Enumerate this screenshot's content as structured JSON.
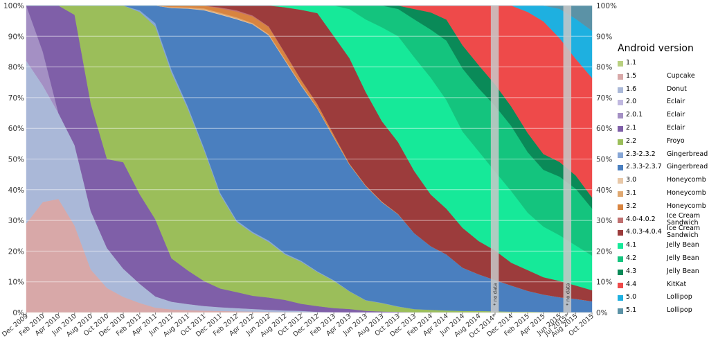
{
  "chart_data": {
    "type": "area",
    "stacked": true,
    "normalized": true,
    "title": "",
    "xlabel": "",
    "ylabel": "",
    "ylim": [
      0,
      100
    ],
    "grid": true,
    "legend_title": "Android version",
    "legend_placement": "right",
    "x_range": [
      "2009-12-01",
      "2015-10-01"
    ],
    "x_ticks": [
      {
        "date": "2009-12-01",
        "label": "Dec 2009"
      },
      {
        "date": "2010-02-01",
        "label": "Feb 2010"
      },
      {
        "date": "2010-04-01",
        "label": "Apr 2010"
      },
      {
        "date": "2010-06-01",
        "label": "Jun 2010"
      },
      {
        "date": "2010-08-01",
        "label": "Aug 2010"
      },
      {
        "date": "2010-10-01",
        "label": "Oct 2010"
      },
      {
        "date": "2010-12-01",
        "label": "Dec 2010"
      },
      {
        "date": "2011-02-01",
        "label": "Feb 2011"
      },
      {
        "date": "2011-04-01",
        "label": "Apr 2011"
      },
      {
        "date": "2011-06-01",
        "label": "Jun 2011"
      },
      {
        "date": "2011-08-01",
        "label": "Aug 2011"
      },
      {
        "date": "2011-10-01",
        "label": "Oct 2011"
      },
      {
        "date": "2011-12-01",
        "label": "Dec 2011"
      },
      {
        "date": "2012-02-01",
        "label": "Feb 2012"
      },
      {
        "date": "2012-04-01",
        "label": "Apr 2012"
      },
      {
        "date": "2012-06-01",
        "label": "Jun 2012"
      },
      {
        "date": "2012-08-01",
        "label": "Aug 2012"
      },
      {
        "date": "2012-10-01",
        "label": "Oct 2012"
      },
      {
        "date": "2012-12-01",
        "label": "Dec 2012"
      },
      {
        "date": "2013-02-01",
        "label": "Feb 2013"
      },
      {
        "date": "2013-04-01",
        "label": "Apr 2013"
      },
      {
        "date": "2013-06-01",
        "label": "Jun 2013"
      },
      {
        "date": "2013-08-01",
        "label": "Aug 2013"
      },
      {
        "date": "2013-10-01",
        "label": "Oct 2013"
      },
      {
        "date": "2013-12-01",
        "label": "Dec 2013"
      },
      {
        "date": "2014-02-01",
        "label": "Feb 2014"
      },
      {
        "date": "2014-04-01",
        "label": "Apr 2014"
      },
      {
        "date": "2014-06-01",
        "label": "Jun 2014"
      },
      {
        "date": "2014-08-01",
        "label": "Aug 2014"
      },
      {
        "date": "2014-10-01",
        "label": "Oct 2014*"
      },
      {
        "date": "2014-12-01",
        "label": "Dec 2014"
      },
      {
        "date": "2015-02-01",
        "label": "Feb 2015"
      },
      {
        "date": "2015-04-01",
        "label": "Apr 2015"
      },
      {
        "date": "2015-06-01",
        "label": "Jun 2015"
      },
      {
        "date": "2015-07-01",
        "label": "Jul 2015*"
      },
      {
        "date": "2015-08-01",
        "label": "Aug 2015"
      },
      {
        "date": "2015-10-01",
        "label": "Oct 2015"
      }
    ],
    "y_ticks": [
      {
        "value": 0,
        "label": "0%"
      },
      {
        "value": 10,
        "label": "10%"
      },
      {
        "value": 20,
        "label": "20%"
      },
      {
        "value": 30,
        "label": "30%"
      },
      {
        "value": 40,
        "label": "40%"
      },
      {
        "value": 50,
        "label": "50%"
      },
      {
        "value": 60,
        "label": "60%"
      },
      {
        "value": 70,
        "label": "70%"
      },
      {
        "value": 80,
        "label": "80%"
      },
      {
        "value": 90,
        "label": "90%"
      },
      {
        "value": 100,
        "label": "100%"
      }
    ],
    "no_data_bands": [
      {
        "from": "2014-09-15",
        "to": "2014-10-15",
        "label": "* no data"
      },
      {
        "from": "2015-06-15",
        "to": "2015-07-15",
        "label": "* no data"
      }
    ],
    "x": [
      "2009-12-01",
      "2010-02-01",
      "2010-04-01",
      "2010-06-01",
      "2010-08-01",
      "2010-10-01",
      "2010-12-01",
      "2011-02-01",
      "2011-04-01",
      "2011-06-01",
      "2011-08-01",
      "2011-10-01",
      "2011-12-01",
      "2012-02-01",
      "2012-04-01",
      "2012-06-01",
      "2012-08-01",
      "2012-10-01",
      "2012-12-01",
      "2013-02-01",
      "2013-04-01",
      "2013-06-01",
      "2013-08-01",
      "2013-10-01",
      "2013-12-01",
      "2014-02-01",
      "2014-04-01",
      "2014-06-01",
      "2014-08-01",
      "2014-10-01",
      "2014-12-01",
      "2015-02-01",
      "2015-04-01",
      "2015-06-01",
      "2015-08-01",
      "2015-10-01"
    ],
    "series": [
      {
        "version": "1.1",
        "name": "",
        "color": "#b9d080",
        "values": [
          0,
          0,
          0,
          0,
          0,
          0,
          0,
          0,
          0,
          0,
          0,
          0,
          0,
          0,
          0,
          0,
          0,
          0,
          0,
          0,
          0,
          0,
          0,
          0,
          0,
          0,
          0,
          0,
          0,
          0,
          0,
          0,
          0,
          0,
          0,
          0
        ]
      },
      {
        "version": "1.5",
        "name": "Cupcake",
        "color": "#d8a8a8",
        "values": [
          29,
          36,
          37,
          28,
          14,
          8,
          5,
          3,
          1.5,
          1,
          0.8,
          0.6,
          0.5,
          0.4,
          0.3,
          0.2,
          0.1,
          0.1,
          0,
          0,
          0,
          0,
          0,
          0,
          0,
          0,
          0,
          0,
          0,
          0,
          0,
          0,
          0,
          0,
          0,
          0
        ]
      },
      {
        "version": "1.6",
        "name": "Donut",
        "color": "#aab8d8",
        "values": [
          53,
          38,
          28,
          26,
          19,
          13,
          9,
          6,
          3.5,
          2.5,
          2,
          1.5,
          1.2,
          1,
          0.8,
          0.6,
          0.5,
          0.4,
          0.2,
          0.1,
          0,
          0,
          0,
          0,
          0,
          0,
          0,
          0,
          0,
          0,
          0,
          0,
          0,
          0,
          0,
          0
        ]
      },
      {
        "version": "2.0",
        "name": "Eclair",
        "color": "#c0b8e0",
        "values": [
          0,
          0,
          0,
          0,
          0,
          0,
          0,
          0,
          0,
          0,
          0,
          0,
          0,
          0,
          0,
          0,
          0,
          0,
          0,
          0,
          0,
          0,
          0,
          0,
          0,
          0,
          0,
          0,
          0,
          0,
          0,
          0,
          0,
          0,
          0,
          0
        ]
      },
      {
        "version": "2.0.1",
        "name": "Eclair",
        "color": "#a490c4",
        "values": [
          18,
          11,
          0,
          0,
          0,
          0,
          0,
          0,
          0,
          0,
          0,
          0,
          0,
          0,
          0,
          0,
          0,
          0,
          0,
          0,
          0,
          0,
          0,
          0,
          0,
          0,
          0,
          0,
          0,
          0,
          0,
          0,
          0,
          0,
          0,
          0
        ]
      },
      {
        "version": "2.1",
        "name": "Eclair",
        "color": "#7f5fa8",
        "values": [
          0,
          15,
          35,
          42,
          35,
          29,
          34,
          28,
          24,
          14,
          11,
          8,
          6,
          5,
          4,
          3.5,
          3,
          2,
          1.5,
          1.2,
          1,
          0.5,
          0.3,
          0.2,
          0,
          0,
          0,
          0,
          0,
          0,
          0,
          0,
          0,
          0,
          0,
          0
        ]
      },
      {
        "version": "2.2",
        "name": "Froyo",
        "color": "#9bbe5a",
        "values": [
          0,
          0,
          0,
          3,
          32,
          50,
          50,
          57,
          60,
          60,
          53,
          42,
          30,
          22,
          19,
          16,
          13,
          12,
          9,
          8,
          5,
          3,
          2.5,
          1.5,
          1,
          0.8,
          0.6,
          0.5,
          0.5,
          0.4,
          0.3,
          0.3,
          0.2,
          0.2,
          0.1,
          0.1
        ]
      },
      {
        "version": "2.3-2.3.2",
        "name": "Gingerbread",
        "color": "#86a6d6",
        "values": [
          0,
          0,
          0,
          0,
          0,
          0,
          0,
          0.5,
          1,
          1,
          0.8,
          0.7,
          0.6,
          0.5,
          0.4,
          0.4,
          0.3,
          0.3,
          0.2,
          0.2,
          0.1,
          0.1,
          0.1,
          0.1,
          0,
          0,
          0,
          0,
          0,
          0,
          0,
          0,
          0,
          0,
          0,
          0
        ]
      },
      {
        "version": "2.3.3-2.3.7",
        "name": "Gingerbread",
        "color": "#4a7fbf",
        "values": [
          0,
          0,
          0,
          0,
          0,
          0,
          0,
          1.5,
          5.5,
          20,
          32,
          44,
          57,
          63,
          63,
          59,
          55,
          50,
          43,
          42,
          36,
          33,
          30,
          27,
          22,
          18.5,
          16,
          13,
          11,
          9.5,
          8,
          6.5,
          5.5,
          4.5,
          4,
          3.5
        ]
      },
      {
        "version": "3.0",
        "name": "Honeycomb",
        "color": "#e8c8a8",
        "values": [
          0,
          0,
          0,
          0,
          0,
          0,
          0,
          0,
          0,
          0.1,
          0.1,
          0.2,
          0.2,
          0.2,
          0.1,
          0.1,
          0.1,
          0.1,
          0,
          0,
          0,
          0,
          0,
          0,
          0,
          0,
          0,
          0,
          0,
          0,
          0,
          0,
          0,
          0,
          0,
          0
        ]
      },
      {
        "version": "3.1",
        "name": "Honeycomb",
        "color": "#e0a870",
        "values": [
          0,
          0,
          0,
          0,
          0,
          0,
          0,
          0,
          0,
          0.2,
          0.3,
          0.4,
          0.4,
          0.4,
          0.3,
          0.3,
          0.3,
          0.3,
          0.2,
          0.2,
          0.1,
          0.1,
          0.1,
          0,
          0,
          0,
          0,
          0,
          0,
          0,
          0,
          0,
          0,
          0,
          0,
          0
        ]
      },
      {
        "version": "3.2",
        "name": "Honeycomb",
        "color": "#d88440",
        "values": [
          0,
          0,
          0,
          0,
          0,
          0,
          0,
          0,
          0,
          0.5,
          0.6,
          0.9,
          1.4,
          1.8,
          2,
          2,
          1.6,
          1.2,
          0.9,
          0.6,
          0.2,
          0.1,
          0.1,
          0.1,
          0,
          0,
          0,
          0,
          0,
          0,
          0,
          0,
          0,
          0,
          0,
          0
        ]
      },
      {
        "version": "4.0-4.0.2",
        "name": "Ice Cream Sandwich",
        "color": "#c07070",
        "values": [
          0,
          0,
          0,
          0,
          0,
          0,
          0,
          0,
          0,
          0,
          0,
          0,
          0.3,
          0.4,
          0.3,
          0.2,
          0.2,
          0.1,
          0.1,
          0.1,
          0,
          0,
          0,
          0,
          0,
          0,
          0,
          0,
          0,
          0,
          0,
          0,
          0,
          0,
          0,
          0
        ]
      },
      {
        "version": "4.0.3-4.0.4",
        "name": "Ice Cream Sandwich",
        "color": "#9c3c3c",
        "values": [
          0,
          0,
          0,
          0,
          0,
          0,
          0,
          0,
          0,
          0,
          0,
          0,
          0.6,
          1.5,
          3,
          6,
          13,
          20,
          24,
          29,
          30,
          27,
          24,
          21,
          18,
          15,
          13,
          12,
          10,
          9,
          7,
          6.5,
          5.5,
          5,
          4,
          3.5
        ]
      },
      {
        "version": "4.1",
        "name": "Jelly Bean",
        "color": "#16e999",
        "values": [
          0,
          0,
          0,
          0,
          0,
          0,
          0,
          0,
          0,
          0,
          0,
          0,
          0,
          0,
          0,
          0,
          0.5,
          1.2,
          2,
          9,
          14,
          21,
          28,
          31,
          33,
          34,
          31,
          29,
          27,
          24,
          22,
          18,
          16,
          14,
          12,
          11
        ]
      },
      {
        "version": "4.2",
        "name": "Jelly Bean",
        "color": "#14c47e",
        "values": [
          0,
          0,
          0,
          0,
          0,
          0,
          0,
          0,
          0,
          0,
          0,
          0,
          0,
          0,
          0,
          0,
          0,
          0,
          0,
          0,
          1,
          4,
          6.5,
          8,
          11,
          14,
          17,
          19,
          19,
          20,
          20,
          19,
          18,
          18,
          17,
          15
        ]
      },
      {
        "version": "4.3",
        "name": "Jelly Bean",
        "color": "#0a8a58",
        "values": [
          0,
          0,
          0,
          0,
          0,
          0,
          0,
          0,
          0,
          0,
          0,
          0,
          0,
          0,
          0,
          0,
          0,
          0,
          0,
          0,
          0,
          0,
          0,
          1,
          3,
          5,
          6,
          7,
          7,
          6.5,
          6,
          6,
          5,
          4.5,
          4,
          3.5
        ]
      },
      {
        "version": "4.4",
        "name": "KitKat",
        "color": "#ee4a4a",
        "values": [
          0,
          0,
          0,
          0,
          0,
          0,
          0,
          0,
          0,
          0,
          0,
          0,
          0,
          0,
          0,
          0,
          0,
          0,
          0,
          0,
          0,
          0,
          0,
          0,
          1,
          2,
          4,
          12,
          18,
          24,
          31,
          38,
          42,
          38,
          35,
          38
        ]
      },
      {
        "version": "5.0",
        "name": "Lollipop",
        "color": "#1eb0e0",
        "values": [
          0,
          0,
          0,
          0,
          0,
          0,
          0,
          0,
          0,
          0,
          0,
          0,
          0,
          0,
          0,
          0,
          0,
          0,
          0,
          0,
          0,
          0,
          0,
          0,
          0,
          0,
          0,
          0,
          0,
          0,
          0,
          2,
          5,
          9,
          12,
          15
        ]
      },
      {
        "version": "5.1",
        "name": "Lollipop",
        "color": "#5b92a6",
        "values": [
          0,
          0,
          0,
          0,
          0,
          0,
          0,
          0,
          0,
          0,
          0,
          0,
          0,
          0,
          0,
          0,
          0,
          0,
          0,
          0,
          0,
          0,
          0,
          0,
          0,
          0,
          0,
          0,
          0,
          0,
          0,
          0,
          0,
          1,
          4,
          8
        ]
      }
    ]
  }
}
